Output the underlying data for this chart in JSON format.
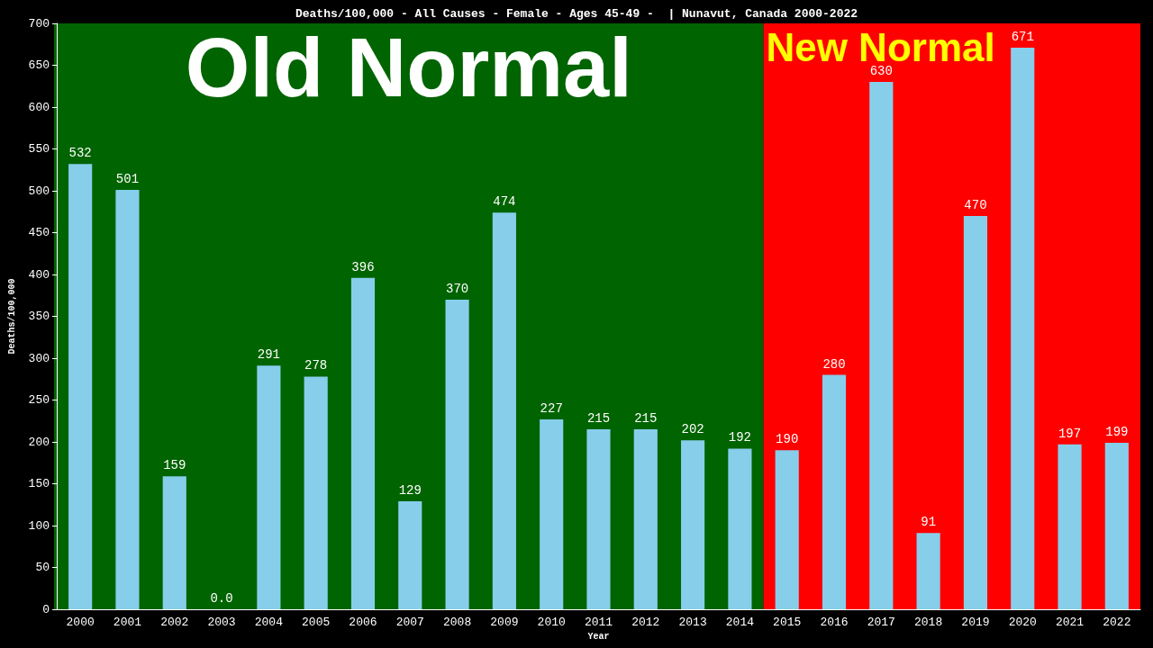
{
  "chart_data": {
    "type": "bar",
    "title": "Deaths/100,000 - All Causes - Female - Ages 45-49 -  | Nunavut, Canada 2000-2022",
    "xlabel": "Year",
    "ylabel": "Deaths/100,000",
    "categories": [
      "2000",
      "2001",
      "2002",
      "2003",
      "2004",
      "2005",
      "2006",
      "2007",
      "2008",
      "2009",
      "2010",
      "2011",
      "2012",
      "2013",
      "2014",
      "2015",
      "2016",
      "2017",
      "2018",
      "2019",
      "2020",
      "2021",
      "2022"
    ],
    "values": [
      532,
      501,
      159,
      0,
      291,
      278,
      396,
      129,
      370,
      474,
      227,
      215,
      215,
      202,
      192,
      190,
      280,
      630,
      91,
      470,
      671,
      197,
      199
    ],
    "value_labels": [
      "532",
      "501",
      "159",
      "0.0",
      "291",
      "278",
      "396",
      "129",
      "370",
      "474",
      "227",
      "215",
      "215",
      "202",
      "192",
      "190",
      "280",
      "630",
      "91",
      "470",
      "671",
      "197",
      "199"
    ],
    "color": "#87ceeb",
    "ylim": [
      0,
      700
    ],
    "yticks": [
      0,
      50,
      100,
      150,
      200,
      250,
      300,
      350,
      400,
      450,
      500,
      550,
      600,
      650,
      700
    ],
    "grid": false,
    "bands": [
      {
        "axis": "x",
        "from": "2000",
        "to": "2014",
        "label": "Old Normal",
        "color": "#006400"
      },
      {
        "axis": "x",
        "from": "2015",
        "to": "2022",
        "label": "New Normal",
        "color": "#ff0000"
      }
    ]
  }
}
